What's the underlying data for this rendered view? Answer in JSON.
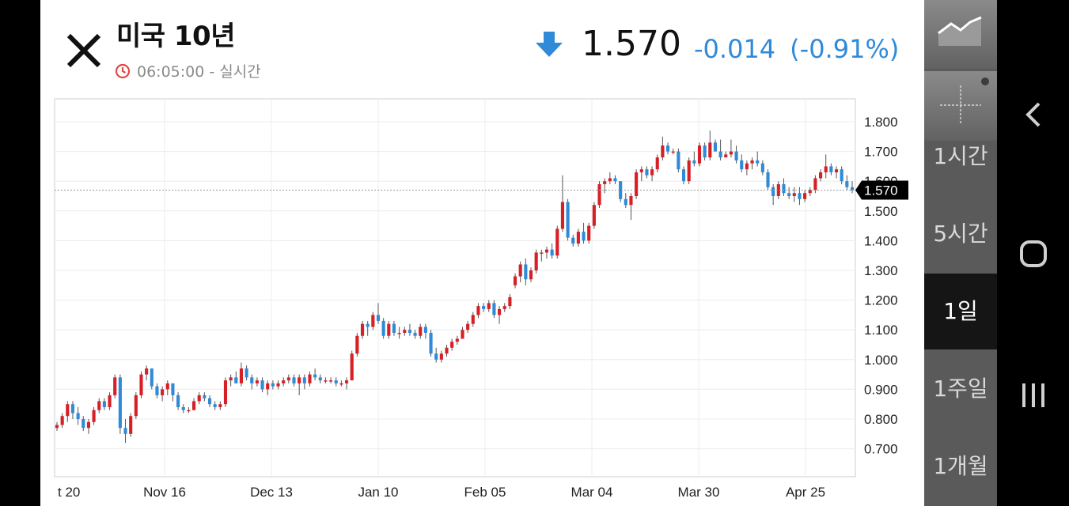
{
  "header": {
    "title": "미국 10년",
    "time": "06:05:00",
    "mode": "- 실시간",
    "price": "1.570",
    "change": "-0.014",
    "change_pct": "(-0.91%)"
  },
  "colors": {
    "up": "#d71f26",
    "down": "#2f8ad8",
    "accent": "#2f8ad8"
  },
  "sidebar": {
    "items": [
      {
        "label": "1시간"
      },
      {
        "label": "5시간"
      },
      {
        "label": "1일",
        "active": true
      },
      {
        "label": "1주일"
      },
      {
        "label": "1개월"
      }
    ]
  },
  "chart_data": {
    "type": "candlestick",
    "ylim": [
      0.6,
      1.87
    ],
    "y_ticks": [
      "1.800",
      "1.700",
      "1.600",
      "1.500",
      "1.400",
      "1.300",
      "1.200",
      "1.100",
      "1.000",
      "0.900",
      "0.800",
      "0.700"
    ],
    "x_ticks": [
      "t 20",
      "Nov 16",
      "Dec 13",
      "Jan 10",
      "Feb 05",
      "Mar 04",
      "Mar 30",
      "Apr 25"
    ],
    "last_price_label": "1.570",
    "last_price": 1.57,
    "ohlc": [
      [
        0.77,
        0.79,
        0.76,
        0.78
      ],
      [
        0.78,
        0.82,
        0.77,
        0.81
      ],
      [
        0.81,
        0.86,
        0.79,
        0.85
      ],
      [
        0.85,
        0.86,
        0.8,
        0.82
      ],
      [
        0.82,
        0.84,
        0.78,
        0.8
      ],
      [
        0.8,
        0.81,
        0.76,
        0.77
      ],
      [
        0.77,
        0.8,
        0.75,
        0.79
      ],
      [
        0.79,
        0.84,
        0.78,
        0.83
      ],
      [
        0.83,
        0.87,
        0.82,
        0.86
      ],
      [
        0.86,
        0.87,
        0.83,
        0.84
      ],
      [
        0.84,
        0.89,
        0.83,
        0.88
      ],
      [
        0.88,
        0.95,
        0.87,
        0.94
      ],
      [
        0.94,
        0.95,
        0.75,
        0.77
      ],
      [
        0.77,
        0.8,
        0.72,
        0.75
      ],
      [
        0.75,
        0.82,
        0.74,
        0.81
      ],
      [
        0.81,
        0.89,
        0.8,
        0.88
      ],
      [
        0.88,
        0.96,
        0.87,
        0.95
      ],
      [
        0.95,
        0.98,
        0.93,
        0.97
      ],
      [
        0.97,
        0.97,
        0.9,
        0.91
      ],
      [
        0.91,
        0.92,
        0.87,
        0.88
      ],
      [
        0.88,
        0.91,
        0.86,
        0.9
      ],
      [
        0.9,
        0.93,
        0.88,
        0.92
      ],
      [
        0.92,
        0.92,
        0.86,
        0.88
      ],
      [
        0.88,
        0.89,
        0.83,
        0.84
      ],
      [
        0.84,
        0.85,
        0.82,
        0.83
      ],
      [
        0.83,
        0.84,
        0.82,
        0.83
      ],
      [
        0.83,
        0.87,
        0.83,
        0.86
      ],
      [
        0.86,
        0.89,
        0.85,
        0.88
      ],
      [
        0.88,
        0.89,
        0.86,
        0.87
      ],
      [
        0.87,
        0.88,
        0.84,
        0.85
      ],
      [
        0.85,
        0.86,
        0.83,
        0.84
      ],
      [
        0.84,
        0.86,
        0.83,
        0.85
      ],
      [
        0.85,
        0.94,
        0.84,
        0.93
      ],
      [
        0.93,
        0.95,
        0.91,
        0.94
      ],
      [
        0.94,
        0.96,
        0.92,
        0.92
      ],
      [
        0.92,
        0.99,
        0.91,
        0.97
      ],
      [
        0.97,
        0.98,
        0.93,
        0.94
      ],
      [
        0.94,
        0.95,
        0.9,
        0.92
      ],
      [
        0.92,
        0.94,
        0.91,
        0.93
      ],
      [
        0.93,
        0.94,
        0.89,
        0.9
      ],
      [
        0.9,
        0.93,
        0.88,
        0.92
      ],
      [
        0.92,
        0.93,
        0.9,
        0.91
      ],
      [
        0.91,
        0.93,
        0.9,
        0.92
      ],
      [
        0.92,
        0.94,
        0.91,
        0.93
      ],
      [
        0.93,
        0.95,
        0.92,
        0.94
      ],
      [
        0.94,
        0.95,
        0.91,
        0.92
      ],
      [
        0.92,
        0.95,
        0.88,
        0.94
      ],
      [
        0.94,
        0.95,
        0.9,
        0.92
      ],
      [
        0.92,
        0.96,
        0.91,
        0.95
      ],
      [
        0.95,
        0.97,
        0.93,
        0.94
      ],
      [
        0.94,
        0.95,
        0.92,
        0.93
      ],
      [
        0.93,
        0.94,
        0.92,
        0.93
      ],
      [
        0.93,
        0.94,
        0.92,
        0.93
      ],
      [
        0.93,
        0.94,
        0.91,
        0.92
      ],
      [
        0.92,
        0.93,
        0.91,
        0.92
      ],
      [
        0.92,
        0.94,
        0.9,
        0.93
      ],
      [
        0.93,
        1.03,
        0.93,
        1.02
      ],
      [
        1.02,
        1.09,
        1.01,
        1.08
      ],
      [
        1.08,
        1.13,
        1.07,
        1.12
      ],
      [
        1.12,
        1.13,
        1.08,
        1.11
      ],
      [
        1.11,
        1.16,
        1.1,
        1.15
      ],
      [
        1.15,
        1.19,
        1.12,
        1.13
      ],
      [
        1.13,
        1.14,
        1.07,
        1.08
      ],
      [
        1.08,
        1.13,
        1.07,
        1.12
      ],
      [
        1.12,
        1.13,
        1.08,
        1.09
      ],
      [
        1.09,
        1.11,
        1.07,
        1.09
      ],
      [
        1.09,
        1.11,
        1.08,
        1.1
      ],
      [
        1.1,
        1.12,
        1.08,
        1.09
      ],
      [
        1.09,
        1.1,
        1.07,
        1.08
      ],
      [
        1.08,
        1.12,
        1.07,
        1.11
      ],
      [
        1.11,
        1.12,
        1.07,
        1.09
      ],
      [
        1.09,
        1.1,
        1.01,
        1.02
      ],
      [
        1.02,
        1.04,
        0.99,
        1.0
      ],
      [
        1.0,
        1.03,
        0.99,
        1.02
      ],
      [
        1.02,
        1.05,
        1.01,
        1.04
      ],
      [
        1.04,
        1.07,
        1.03,
        1.06
      ],
      [
        1.06,
        1.08,
        1.05,
        1.07
      ],
      [
        1.07,
        1.11,
        1.07,
        1.1
      ],
      [
        1.1,
        1.13,
        1.09,
        1.12
      ],
      [
        1.12,
        1.16,
        1.11,
        1.15
      ],
      [
        1.15,
        1.19,
        1.14,
        1.18
      ],
      [
        1.18,
        1.19,
        1.16,
        1.17
      ],
      [
        1.17,
        1.2,
        1.16,
        1.19
      ],
      [
        1.19,
        1.2,
        1.14,
        1.15
      ],
      [
        1.15,
        1.18,
        1.12,
        1.17
      ],
      [
        1.17,
        1.19,
        1.16,
        1.18
      ],
      [
        1.18,
        1.22,
        1.17,
        1.21
      ],
      [
        1.25,
        1.29,
        1.24,
        1.28
      ],
      [
        1.28,
        1.33,
        1.26,
        1.32
      ],
      [
        1.32,
        1.34,
        1.25,
        1.27
      ],
      [
        1.27,
        1.31,
        1.26,
        1.3
      ],
      [
        1.3,
        1.37,
        1.29,
        1.36
      ],
      [
        1.36,
        1.37,
        1.33,
        1.36
      ],
      [
        1.36,
        1.38,
        1.34,
        1.37
      ],
      [
        1.37,
        1.39,
        1.34,
        1.35
      ],
      [
        1.35,
        1.45,
        1.34,
        1.44
      ],
      [
        1.44,
        1.62,
        1.43,
        1.53
      ],
      [
        1.53,
        1.54,
        1.4,
        1.41
      ],
      [
        1.41,
        1.42,
        1.38,
        1.39
      ],
      [
        1.39,
        1.44,
        1.38,
        1.43
      ],
      [
        1.43,
        1.46,
        1.39,
        1.4
      ],
      [
        1.4,
        1.46,
        1.39,
        1.45
      ],
      [
        1.45,
        1.53,
        1.44,
        1.52
      ],
      [
        1.52,
        1.6,
        1.51,
        1.59
      ],
      [
        1.59,
        1.61,
        1.56,
        1.6
      ],
      [
        1.6,
        1.63,
        1.59,
        1.61
      ],
      [
        1.61,
        1.62,
        1.59,
        1.6
      ],
      [
        1.6,
        1.6,
        1.53,
        1.54
      ],
      [
        1.54,
        1.56,
        1.51,
        1.52
      ],
      [
        1.52,
        1.56,
        1.47,
        1.55
      ],
      [
        1.55,
        1.64,
        1.54,
        1.63
      ],
      [
        1.63,
        1.65,
        1.6,
        1.64
      ],
      [
        1.64,
        1.65,
        1.61,
        1.62
      ],
      [
        1.62,
        1.65,
        1.6,
        1.64
      ],
      [
        1.64,
        1.69,
        1.63,
        1.68
      ],
      [
        1.68,
        1.75,
        1.67,
        1.72
      ],
      [
        1.72,
        1.73,
        1.69,
        1.7
      ],
      [
        1.7,
        1.71,
        1.69,
        1.7
      ],
      [
        1.7,
        1.71,
        1.63,
        1.64
      ],
      [
        1.64,
        1.65,
        1.59,
        1.6
      ],
      [
        1.6,
        1.68,
        1.59,
        1.67
      ],
      [
        1.67,
        1.7,
        1.65,
        1.66
      ],
      [
        1.66,
        1.73,
        1.65,
        1.72
      ],
      [
        1.72,
        1.73,
        1.67,
        1.68
      ],
      [
        1.68,
        1.77,
        1.67,
        1.73
      ],
      [
        1.73,
        1.74,
        1.7,
        1.7
      ],
      [
        1.7,
        1.74,
        1.67,
        1.68
      ],
      [
        1.68,
        1.7,
        1.68,
        1.69
      ],
      [
        1.69,
        1.74,
        1.68,
        1.7
      ],
      [
        1.7,
        1.72,
        1.66,
        1.67
      ],
      [
        1.67,
        1.69,
        1.63,
        1.64
      ],
      [
        1.64,
        1.67,
        1.62,
        1.66
      ],
      [
        1.66,
        1.68,
        1.64,
        1.67
      ],
      [
        1.67,
        1.7,
        1.65,
        1.66
      ],
      [
        1.66,
        1.67,
        1.62,
        1.63
      ],
      [
        1.63,
        1.64,
        1.57,
        1.58
      ],
      [
        1.58,
        1.59,
        1.52,
        1.55
      ],
      [
        1.55,
        1.6,
        1.54,
        1.59
      ],
      [
        1.59,
        1.61,
        1.55,
        1.56
      ],
      [
        1.56,
        1.58,
        1.54,
        1.55
      ],
      [
        1.55,
        1.58,
        1.53,
        1.56
      ],
      [
        1.56,
        1.58,
        1.52,
        1.54
      ],
      [
        1.54,
        1.57,
        1.53,
        1.56
      ],
      [
        1.56,
        1.58,
        1.55,
        1.57
      ],
      [
        1.57,
        1.62,
        1.56,
        1.61
      ],
      [
        1.61,
        1.64,
        1.6,
        1.63
      ],
      [
        1.63,
        1.69,
        1.61,
        1.65
      ],
      [
        1.65,
        1.66,
        1.62,
        1.63
      ],
      [
        1.63,
        1.65,
        1.61,
        1.64
      ],
      [
        1.64,
        1.65,
        1.59,
        1.6
      ],
      [
        1.6,
        1.62,
        1.57,
        1.58
      ],
      [
        1.58,
        1.6,
        1.56,
        1.57
      ]
    ]
  }
}
